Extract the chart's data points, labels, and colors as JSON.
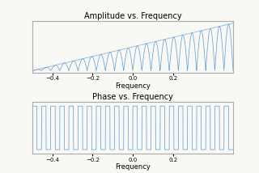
{
  "title1": "Amplitude vs. Frequency",
  "title2": "Phase vs. Frequency",
  "xlabel": "Frequency",
  "line_color": "#5b9bd5",
  "xlim": [
    -0.5,
    0.5
  ],
  "n_cycles": 22,
  "background_color": "#f8f8f4",
  "axes_facecolor": "#f8f8f4",
  "spine_color": "#aaaaaa",
  "xticks": [
    -0.4,
    -0.2,
    0.0,
    0.2
  ],
  "title_fontsize": 7,
  "xlabel_fontsize": 6,
  "tick_labelsize": 5
}
